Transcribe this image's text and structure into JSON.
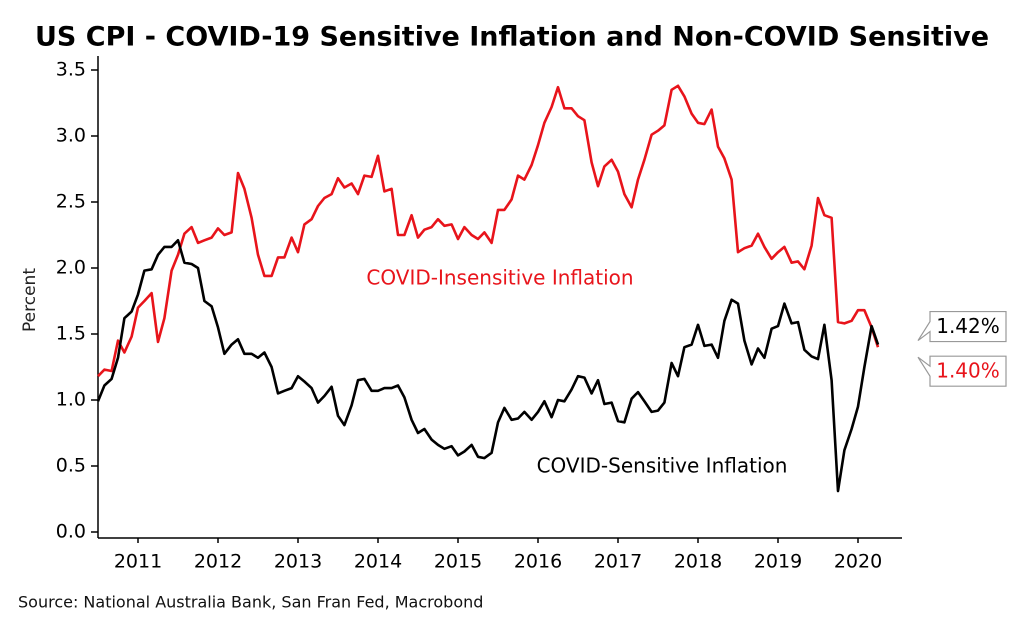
{
  "chart_data": {
    "type": "line",
    "title": "US CPI - COVID-19 Sensitive Inflation and Non-COVID Sensitive",
    "y_label": "Percent",
    "source": "Source: National Australia Bank, San Fran Fed, Macrobond",
    "annotations": [
      "COVID-Insensitive Inflation",
      "COVID-Sensitive Inflation"
    ],
    "x": [
      2011,
      2011.08,
      2011.17,
      2011.25,
      2011.33,
      2011.42,
      2011.5,
      2011.58,
      2011.67,
      2011.75,
      2011.83,
      2011.92,
      2012,
      2012.08,
      2012.17,
      2012.25,
      2012.33,
      2012.42,
      2012.5,
      2012.58,
      2012.67,
      2012.75,
      2012.83,
      2012.92,
      2013,
      2013.08,
      2013.17,
      2013.25,
      2013.33,
      2013.42,
      2013.5,
      2013.58,
      2013.67,
      2013.75,
      2013.83,
      2013.92,
      2014,
      2014.08,
      2014.17,
      2014.25,
      2014.33,
      2014.42,
      2014.5,
      2014.58,
      2014.67,
      2014.75,
      2014.83,
      2014.92,
      2015,
      2015.08,
      2015.17,
      2015.25,
      2015.33,
      2015.42,
      2015.5,
      2015.58,
      2015.67,
      2015.75,
      2015.83,
      2015.92,
      2016,
      2016.08,
      2016.17,
      2016.25,
      2016.33,
      2016.42,
      2016.5,
      2016.58,
      2016.67,
      2016.75,
      2016.83,
      2016.92,
      2017,
      2017.08,
      2017.17,
      2017.25,
      2017.33,
      2017.42,
      2017.5,
      2017.58,
      2017.67,
      2017.75,
      2017.83,
      2017.92,
      2018,
      2018.08,
      2018.17,
      2018.25,
      2018.33,
      2018.42,
      2018.5,
      2018.58,
      2018.67,
      2018.75,
      2018.83,
      2018.92,
      2019,
      2019.08,
      2019.17,
      2019.25,
      2019.33,
      2019.42,
      2019.5,
      2019.58,
      2019.67,
      2019.75,
      2019.83,
      2019.92,
      2020,
      2020.08,
      2020.17,
      2020.25,
      2020.33,
      2020.42,
      2020.5,
      2020.58,
      2020.67,
      2020.75
    ],
    "series": [
      {
        "name": "COVID-Insensitive Inflation",
        "color": "#e8141b",
        "end_label": "1.40%",
        "values": [
          1.18,
          1.23,
          1.22,
          1.45,
          1.36,
          1.48,
          1.7,
          1.75,
          1.81,
          1.44,
          1.62,
          1.98,
          2.1,
          2.26,
          2.31,
          2.19,
          2.21,
          2.23,
          2.3,
          2.25,
          2.27,
          2.72,
          2.6,
          2.38,
          2.1,
          1.94,
          1.94,
          2.08,
          2.08,
          2.23,
          2.12,
          2.33,
          2.37,
          2.47,
          2.53,
          2.56,
          2.68,
          2.61,
          2.64,
          2.56,
          2.7,
          2.69,
          2.85,
          2.58,
          2.6,
          2.25,
          2.25,
          2.4,
          2.23,
          2.29,
          2.31,
          2.37,
          2.32,
          2.33,
          2.22,
          2.31,
          2.25,
          2.22,
          2.27,
          2.19,
          2.44,
          2.44,
          2.52,
          2.7,
          2.67,
          2.78,
          2.93,
          3.1,
          3.22,
          3.37,
          3.21,
          3.21,
          3.15,
          3.12,
          2.8,
          2.62,
          2.77,
          2.82,
          2.73,
          2.56,
          2.46,
          2.67,
          2.82,
          3.01,
          3.04,
          3.08,
          3.35,
          3.38,
          3.3,
          3.17,
          3.1,
          3.09,
          3.2,
          2.92,
          2.83,
          2.67,
          2.12,
          2.15,
          2.17,
          2.26,
          2.16,
          2.07,
          2.12,
          2.16,
          2.04,
          2.05,
          1.99,
          2.17,
          2.53,
          2.4,
          2.38,
          1.59,
          1.58,
          1.6,
          1.68,
          1.68,
          1.55,
          1.4
        ]
      },
      {
        "name": "COVID-Sensitive Inflation",
        "color": "#000000",
        "end_label": "1.42%",
        "values": [
          0.99,
          1.11,
          1.16,
          1.32,
          1.62,
          1.67,
          1.8,
          1.98,
          1.99,
          2.1,
          2.16,
          2.16,
          2.21,
          2.04,
          2.03,
          2.0,
          1.75,
          1.71,
          1.55,
          1.35,
          1.42,
          1.46,
          1.35,
          1.35,
          1.32,
          1.36,
          1.25,
          1.05,
          1.07,
          1.09,
          1.18,
          1.14,
          1.09,
          0.98,
          1.03,
          1.1,
          0.88,
          0.81,
          0.96,
          1.15,
          1.16,
          1.07,
          1.07,
          1.09,
          1.09,
          1.11,
          1.02,
          0.85,
          0.75,
          0.78,
          0.7,
          0.66,
          0.63,
          0.65,
          0.58,
          0.61,
          0.66,
          0.57,
          0.56,
          0.6,
          0.83,
          0.94,
          0.85,
          0.86,
          0.91,
          0.85,
          0.91,
          0.99,
          0.87,
          1.0,
          0.99,
          1.08,
          1.18,
          1.17,
          1.05,
          1.15,
          0.97,
          0.98,
          0.84,
          0.83,
          1.01,
          1.06,
          0.99,
          0.91,
          0.92,
          0.98,
          1.28,
          1.18,
          1.4,
          1.42,
          1.57,
          1.41,
          1.42,
          1.32,
          1.6,
          1.76,
          1.73,
          1.45,
          1.27,
          1.39,
          1.32,
          1.54,
          1.56,
          1.73,
          1.58,
          1.59,
          1.38,
          1.33,
          1.31,
          1.57,
          1.15,
          0.31,
          0.62,
          0.78,
          0.95,
          1.25,
          1.56,
          1.42
        ]
      }
    ],
    "xlim": [
      2011,
      2021
    ],
    "xticks": [
      {
        "value": 2011.5,
        "label": "2011"
      },
      {
        "value": 2012.5,
        "label": "2012"
      },
      {
        "value": 2013.5,
        "label": "2013"
      },
      {
        "value": 2014.5,
        "label": "2014"
      },
      {
        "value": 2015.5,
        "label": "2015"
      },
      {
        "value": 2016.5,
        "label": "2016"
      },
      {
        "value": 2017.5,
        "label": "2017"
      },
      {
        "value": 2018.5,
        "label": "2018"
      },
      {
        "value": 2019.5,
        "label": "2019"
      },
      {
        "value": 2020.5,
        "label": "2020"
      }
    ],
    "ylim": [
      0,
      3.6
    ],
    "yticks": [
      {
        "value": 0,
        "label": "0.0"
      },
      {
        "value": 0.5,
        "label": "0.5"
      },
      {
        "value": 1,
        "label": "1.0"
      },
      {
        "value": 1.5,
        "label": "1.5"
      },
      {
        "value": 2,
        "label": "2.0"
      },
      {
        "value": 2.5,
        "label": "2.5"
      },
      {
        "value": 3,
        "label": "3.0"
      },
      {
        "value": 3.5,
        "label": "3.5"
      }
    ],
    "grid": false
  }
}
